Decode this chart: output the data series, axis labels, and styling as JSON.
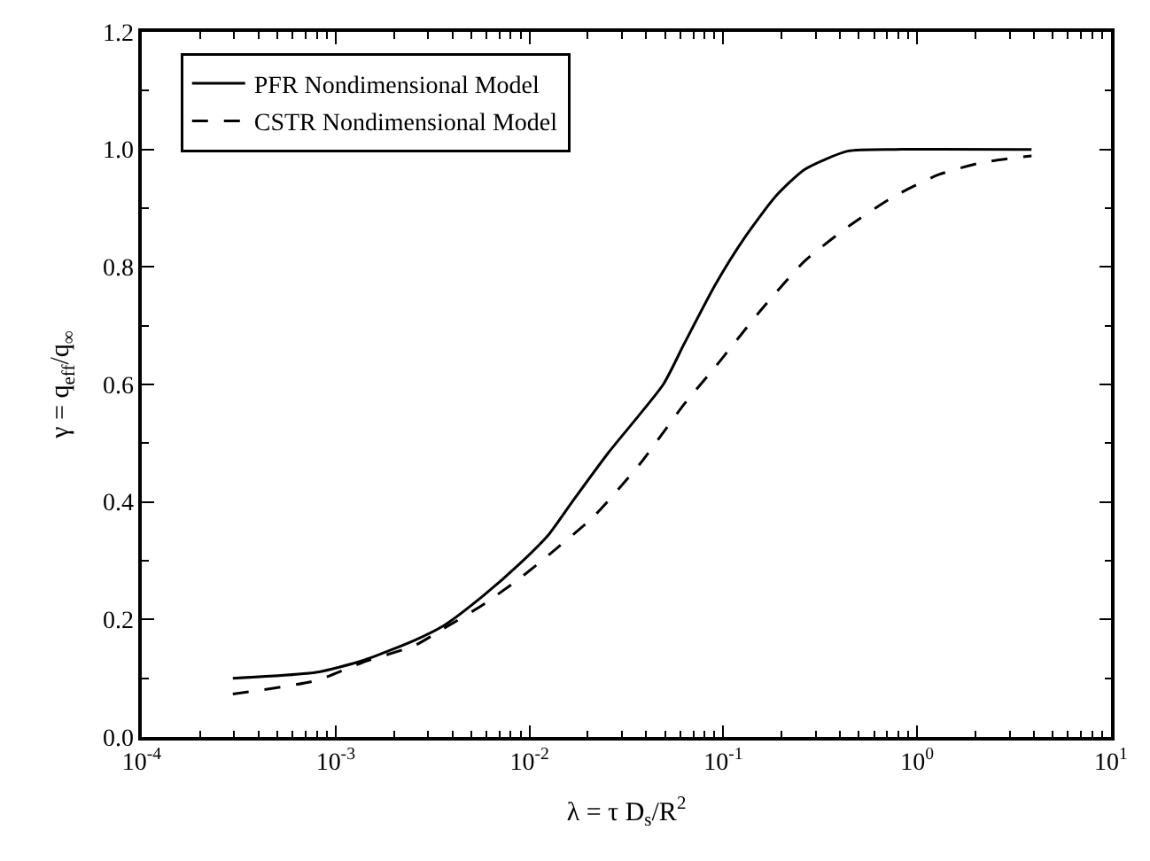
{
  "chart_data": {
    "type": "line",
    "xlabel": "λ = τ D$_{s}$/R$^{2}$",
    "ylabel": "γ = q$_{eff}$/q$_{∞}$",
    "log": "x",
    "xlim": [
      0.0001,
      10
    ],
    "ylim": [
      0,
      1.2
    ],
    "xticks": [
      {
        "value": 0.0001,
        "label": "10$^{-4}$"
      },
      {
        "value": 0.001,
        "label": "10$^{-3}$"
      },
      {
        "value": 0.01,
        "label": "10$^{-2}$"
      },
      {
        "value": 0.1,
        "label": "10$^{-1}$"
      },
      {
        "value": 1,
        "label": "10$^{0}$"
      },
      {
        "value": 10,
        "label": "10$^{1}$"
      }
    ],
    "yticks": [
      {
        "value": 0,
        "label": "0.0"
      },
      0.2,
      0.4,
      0.6,
      0.8,
      {
        "value": 1,
        "label": "1.0"
      },
      1.2
    ],
    "grid": false,
    "legend": "top left",
    "marker": "none",
    "series": [
      {
        "name": "PFR Nondimensional Model",
        "color": "#000000",
        "line_style": "solid",
        "x": [
          0.000295,
          0.000794,
          0.00138,
          0.00257,
          0.00363,
          0.00575,
          0.00891,
          0.0126,
          0.0166,
          0.0257,
          0.049,
          0.063,
          0.091,
          0.129,
          0.186,
          0.263,
          0.437,
          0.776,
          3.89
        ],
        "values": [
          0.1,
          0.11,
          0.13,
          0.165,
          0.19,
          0.24,
          0.295,
          0.345,
          0.4,
          0.485,
          0.6,
          0.67,
          0.77,
          0.85,
          0.92,
          0.966,
          0.997,
          1.0,
          1.0
        ]
      },
      {
        "name": "CSTR Nondimensional Model",
        "color": "#000000",
        "line_style": "dashed",
        "x": [
          0.000295,
          0.000794,
          0.00138,
          0.00257,
          0.00363,
          0.00575,
          0.00891,
          0.0126,
          0.0214,
          0.0372,
          0.063,
          0.091,
          0.155,
          0.263,
          0.447,
          0.759,
          1.29,
          2.19,
          3.89
        ],
        "values": [
          0.073,
          0.096,
          0.127,
          0.156,
          0.185,
          0.225,
          0.27,
          0.31,
          0.375,
          0.465,
          0.567,
          0.63,
          0.725,
          0.81,
          0.87,
          0.92,
          0.957,
          0.978,
          0.989
        ]
      }
    ]
  }
}
